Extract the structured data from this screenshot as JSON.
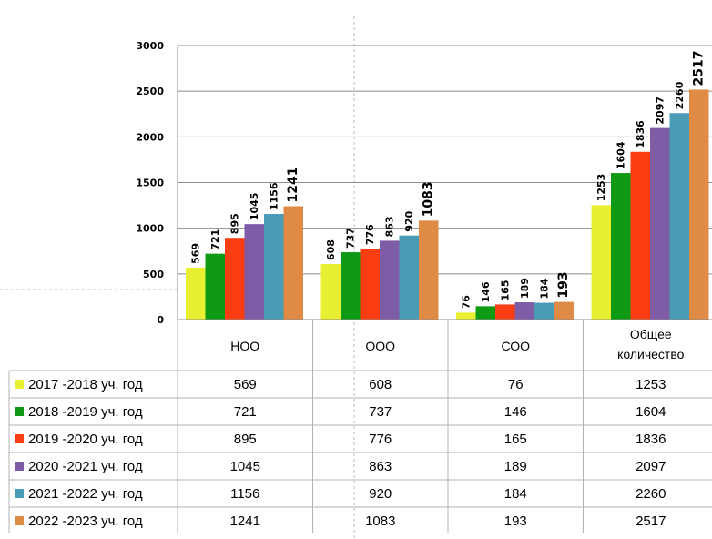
{
  "chart_data": {
    "type": "bar",
    "categories": [
      "НОО",
      "ООО",
      "СОО",
      "Общее количество"
    ],
    "category_lines": [
      [
        "НОО"
      ],
      [
        "ООО"
      ],
      [
        "СОО"
      ],
      [
        "Общее",
        "количество"
      ]
    ],
    "ylim": [
      0,
      3000
    ],
    "yticks": [
      0,
      500,
      1000,
      1500,
      2000,
      2500,
      3000
    ],
    "grid": true,
    "legend": "data-table",
    "series": [
      {
        "name": "2017 -2018 уч. год",
        "color": "#e8f031",
        "values": [
          569,
          608,
          76,
          1253
        ]
      },
      {
        "name": "2018 -2019 уч. год",
        "color": "#0e9a14",
        "values": [
          721,
          737,
          146,
          1604
        ]
      },
      {
        "name": "2019 -2020 уч. год",
        "color": "#fa3d12",
        "values": [
          895,
          776,
          165,
          1836
        ]
      },
      {
        "name": "2020 -2021 уч. год",
        "color": "#7e5ca6",
        "values": [
          1045,
          863,
          189,
          2097
        ]
      },
      {
        "name": "2021 -2022 уч. год",
        "color": "#4a9bb5",
        "values": [
          1156,
          920,
          184,
          2260
        ]
      },
      {
        "name": "2022 -2023 уч. год",
        "color": "#df8a45",
        "values": [
          1241,
          1083,
          193,
          2517
        ]
      }
    ]
  }
}
